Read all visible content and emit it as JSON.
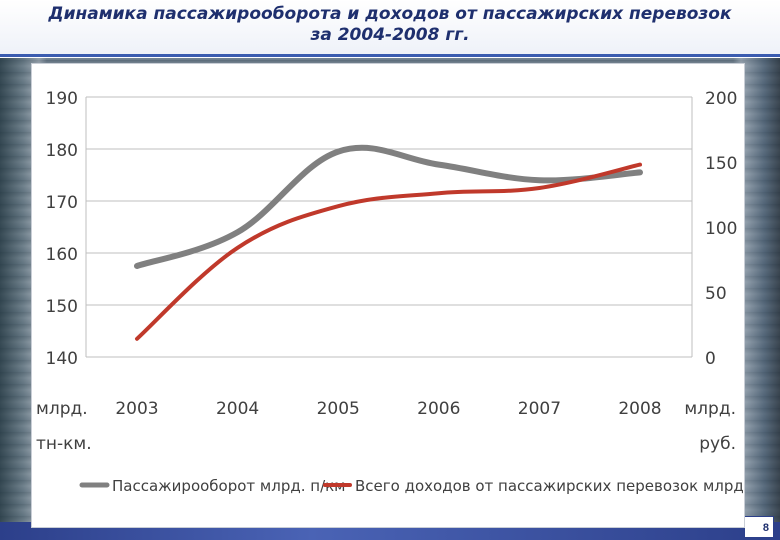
{
  "slide": {
    "title_line1": "Динамика пассажирооборота и доходов от пассажирских перевозок",
    "title_line2": "за 2004-2008 гг.",
    "page_number": "8",
    "colors": {
      "title": "#1e2f6e",
      "accent": "#3b5cb0"
    }
  },
  "chart_data": {
    "type": "line",
    "categories": [
      "2003",
      "2004",
      "2005",
      "2006",
      "2007",
      "2008"
    ],
    "left_axis_label_line1": "млрд.",
    "left_axis_label_line2": "тн-км.",
    "right_axis_label_line1": "млрд.",
    "right_axis_label_line2": "руб.",
    "left_ticks": [
      "190",
      "180",
      "170",
      "160",
      "150",
      "140"
    ],
    "right_ticks": [
      "200",
      "150",
      "100",
      "50",
      "0"
    ],
    "left_ylim": [
      140,
      190
    ],
    "right_ylim": [
      0,
      200
    ],
    "grid": true,
    "legend_position": "bottom",
    "series": [
      {
        "name": "Пассажирооборот млрд. п/км",
        "axis": "left",
        "color": "#808080",
        "values": [
          157.5,
          164,
          179.5,
          177,
          174,
          175.5
        ]
      },
      {
        "name": "Всего доходов от пассажирских перевозок млрд.руб.",
        "axis": "right",
        "color": "#c0392b",
        "values": [
          14,
          84,
          116,
          126,
          130,
          148
        ]
      }
    ]
  }
}
